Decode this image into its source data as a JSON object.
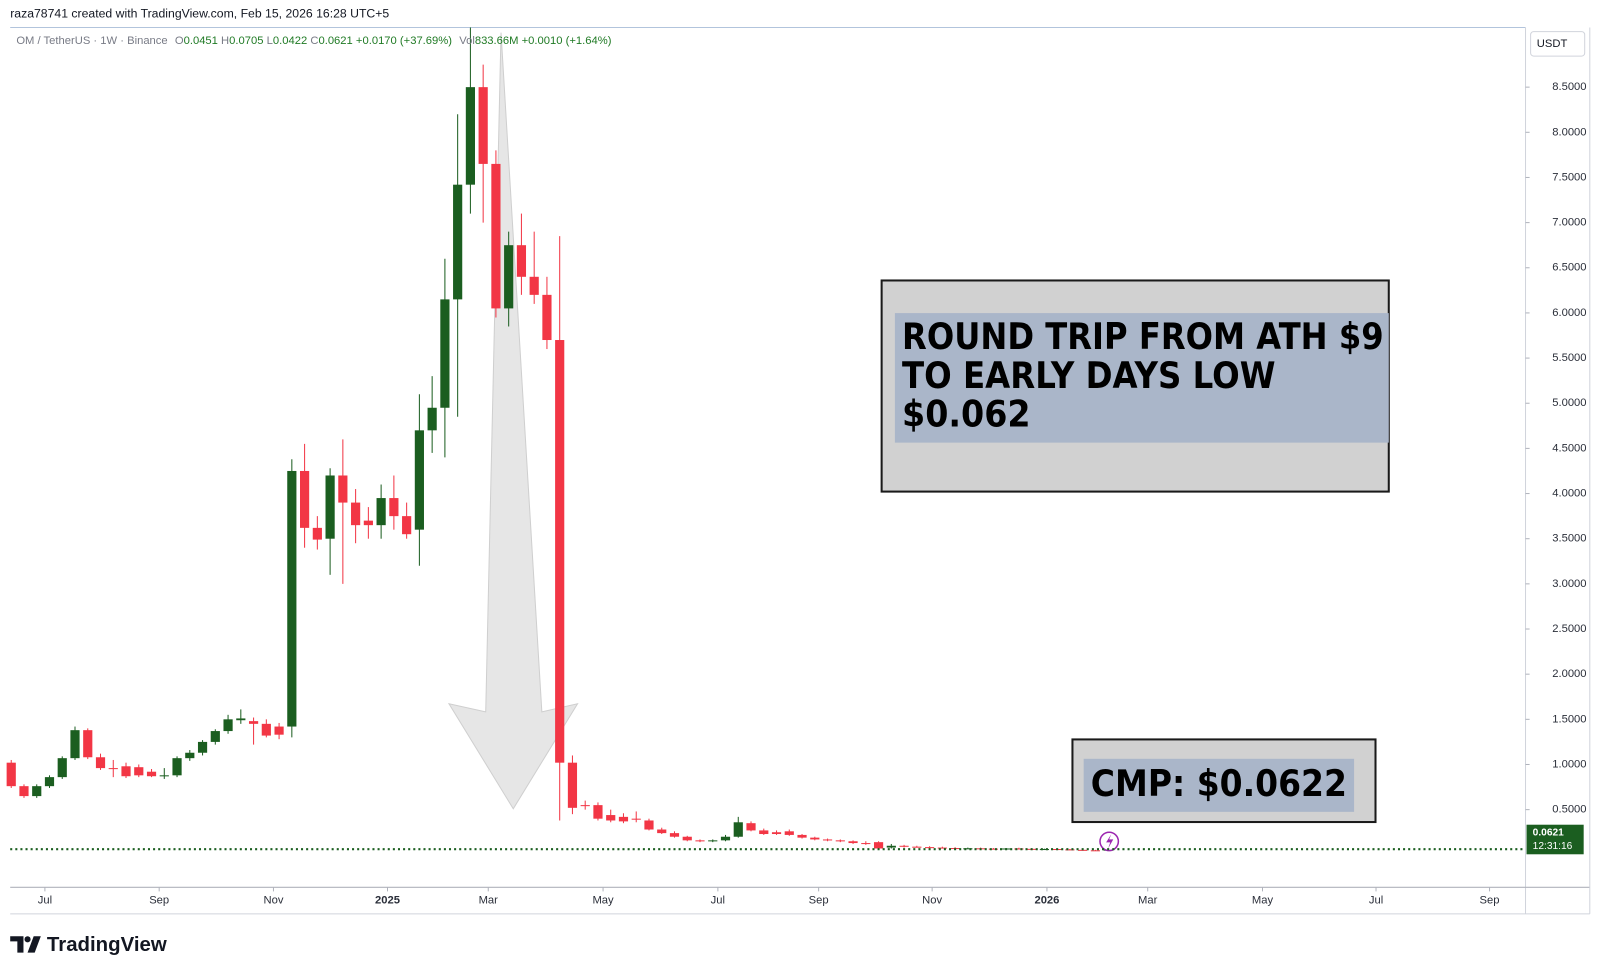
{
  "header": {
    "credit": "raza78741 created with TradingView.com, Feb 15, 2026 16:28 UTC+5",
    "symbol": "OM / TetherUS · 1W · Binance",
    "ohlc": [
      {
        "label": "O",
        "value": "0.0451"
      },
      {
        "label": "H",
        "value": "0.0705"
      },
      {
        "label": "L",
        "value": "0.0422"
      },
      {
        "label": "C",
        "value": "0.0621"
      }
    ],
    "change": "+0.0170 (+37.69%)",
    "volume_label": "Vol",
    "volume": "833.66M",
    "volume_change": "+0.0010 (+1.64%)"
  },
  "chart_data": {
    "type": "candlestick",
    "currency": "USDT",
    "up_color": "#1b5e20",
    "down_color": "#f23645",
    "open": [
      1.02,
      0.76,
      0.65,
      0.76,
      0.86,
      1.07,
      1.38,
      1.08,
      0.96,
      0.98,
      0.97,
      0.92,
      0.87,
      0.88,
      1.07,
      1.13,
      1.25,
      1.37,
      1.49,
      1.48,
      1.45,
      1.42,
      1.42,
      4.25,
      3.62,
      3.5,
      4.2,
      3.9,
      3.7,
      3.65,
      3.95,
      3.75,
      3.6,
      4.7,
      4.95,
      6.15,
      7.42,
      8.5,
      7.65,
      6.05,
      6.75,
      6.4,
      6.2,
      5.7,
      1.02,
      0.55,
      0.55,
      0.44,
      0.42,
      0.4,
      0.38,
      0.28,
      0.24,
      0.2,
      0.16,
      0.15,
      0.16,
      0.2,
      0.35,
      0.27,
      0.25,
      0.26,
      0.22,
      0.19,
      0.17,
      0.16,
      0.15,
      0.13,
      0.14,
      0.08,
      0.1,
      0.09,
      0.085,
      0.08,
      0.075,
      0.07,
      0.072,
      0.068,
      0.065,
      0.07,
      0.066,
      0.06,
      0.064,
      0.06,
      0.055,
      0.05,
      0.0451
    ],
    "high": [
      1.05,
      0.78,
      0.78,
      0.88,
      1.09,
      1.42,
      1.4,
      1.12,
      1.05,
      1.02,
      1.0,
      0.95,
      0.96,
      1.09,
      1.16,
      1.27,
      1.39,
      1.55,
      1.61,
      1.52,
      1.5,
      1.46,
      4.38,
      4.55,
      3.75,
      4.28,
      4.6,
      4.05,
      3.85,
      4.1,
      4.2,
      3.9,
      5.1,
      5.3,
      6.6,
      8.2,
      9.16,
      8.75,
      7.8,
      6.9,
      7.1,
      6.9,
      6.4,
      6.85,
      1.1,
      0.6,
      0.58,
      0.5,
      0.46,
      0.48,
      0.4,
      0.3,
      0.26,
      0.21,
      0.17,
      0.17,
      0.22,
      0.42,
      0.37,
      0.29,
      0.27,
      0.28,
      0.23,
      0.2,
      0.18,
      0.17,
      0.16,
      0.15,
      0.15,
      0.12,
      0.11,
      0.1,
      0.095,
      0.09,
      0.085,
      0.08,
      0.08,
      0.075,
      0.075,
      0.078,
      0.072,
      0.068,
      0.07,
      0.065,
      0.06,
      0.055,
      0.0705
    ],
    "low": [
      0.74,
      0.63,
      0.63,
      0.74,
      0.84,
      1.05,
      1.06,
      0.94,
      0.86,
      0.85,
      0.86,
      0.86,
      0.84,
      0.86,
      1.04,
      1.1,
      1.22,
      1.34,
      1.45,
      1.22,
      1.3,
      1.28,
      1.3,
      3.4,
      3.38,
      3.1,
      3.0,
      3.45,
      3.5,
      3.5,
      3.6,
      3.5,
      3.2,
      4.45,
      4.4,
      4.85,
      7.1,
      7.0,
      5.95,
      5.85,
      6.2,
      6.1,
      5.6,
      0.38,
      0.45,
      0.5,
      0.38,
      0.36,
      0.35,
      0.36,
      0.27,
      0.23,
      0.19,
      0.15,
      0.14,
      0.14,
      0.15,
      0.19,
      0.26,
      0.22,
      0.22,
      0.21,
      0.18,
      0.16,
      0.15,
      0.14,
      0.12,
      0.11,
      0.06,
      0.07,
      0.08,
      0.08,
      0.07,
      0.07,
      0.065,
      0.065,
      0.065,
      0.06,
      0.06,
      0.062,
      0.058,
      0.055,
      0.058,
      0.05,
      0.047,
      0.042,
      0.0422
    ],
    "close": [
      0.76,
      0.65,
      0.76,
      0.86,
      1.07,
      1.38,
      1.08,
      0.96,
      0.95,
      0.87,
      0.88,
      0.87,
      0.88,
      1.07,
      1.13,
      1.25,
      1.37,
      1.5,
      1.51,
      1.45,
      1.32,
      1.33,
      4.25,
      3.62,
      3.49,
      4.2,
      3.9,
      3.65,
      3.65,
      3.95,
      3.75,
      3.55,
      4.7,
      4.95,
      6.15,
      7.42,
      8.5,
      7.65,
      6.05,
      6.75,
      6.4,
      6.2,
      5.7,
      1.02,
      0.52,
      0.54,
      0.4,
      0.38,
      0.37,
      0.39,
      0.28,
      0.24,
      0.2,
      0.16,
      0.15,
      0.16,
      0.2,
      0.36,
      0.27,
      0.23,
      0.23,
      0.22,
      0.19,
      0.17,
      0.16,
      0.15,
      0.13,
      0.12,
      0.07,
      0.1,
      0.09,
      0.085,
      0.08,
      0.075,
      0.07,
      0.072,
      0.068,
      0.065,
      0.07,
      0.066,
      0.06,
      0.064,
      0.06,
      0.055,
      0.05,
      0.0451,
      0.0621
    ],
    "xlim": [
      -0.08,
      118.72
    ],
    "xticks": [
      {
        "value": 2.64,
        "label": "Jul"
      },
      {
        "value": 11.6,
        "label": "Sep"
      },
      {
        "value": 20.56,
        "label": "Nov"
      },
      {
        "value": 29.5,
        "label": "2025"
      },
      {
        "value": 37.4,
        "label": "Mar"
      },
      {
        "value": 46.4,
        "label": "May"
      },
      {
        "value": 55.4,
        "label": "Jul"
      },
      {
        "value": 63.3,
        "label": "Sep"
      },
      {
        "value": 72.2,
        "label": "Nov"
      },
      {
        "value": 81.2,
        "label": "2026"
      },
      {
        "value": 89.1,
        "label": "Mar"
      },
      {
        "value": 98.1,
        "label": "May"
      },
      {
        "value": 107,
        "label": "Jul"
      },
      {
        "value": 115.9,
        "label": "Sep"
      }
    ],
    "ylim": [
      -0.36,
      9.16
    ],
    "yticks": [
      {
        "value": 0.5,
        "label": "0.5000"
      },
      {
        "value": 1,
        "label": "1.0000"
      },
      {
        "value": 1.5,
        "label": "1.5000"
      },
      {
        "value": 2,
        "label": "2.0000"
      },
      {
        "value": 2.5,
        "label": "2.5000"
      },
      {
        "value": 3,
        "label": "3.0000"
      },
      {
        "value": 3.5,
        "label": "3.5000"
      },
      {
        "value": 4,
        "label": "4.0000"
      },
      {
        "value": 4.5,
        "label": "4.5000"
      },
      {
        "value": 5,
        "label": "5.0000"
      },
      {
        "value": 5.5,
        "label": "5.5000"
      },
      {
        "value": 6,
        "label": "6.0000"
      },
      {
        "value": 6.5,
        "label": "6.5000"
      },
      {
        "value": 7,
        "label": "7.0000"
      },
      {
        "value": 7.5,
        "label": "7.5000"
      },
      {
        "value": 8,
        "label": "8.0000"
      },
      {
        "value": 8.5,
        "label": "8.5000"
      }
    ],
    "last_price_label": "0.0621",
    "countdown": "12:31:16",
    "annotations": [
      {
        "lines": [
          "ROUND TRIP FROM ATH $9",
          "TO EARLY DAYS LOW",
          "$0.062"
        ]
      },
      {
        "lines": [
          "CMP: $0.0622"
        ]
      }
    ]
  },
  "footer": {
    "logo": "TradingView"
  }
}
